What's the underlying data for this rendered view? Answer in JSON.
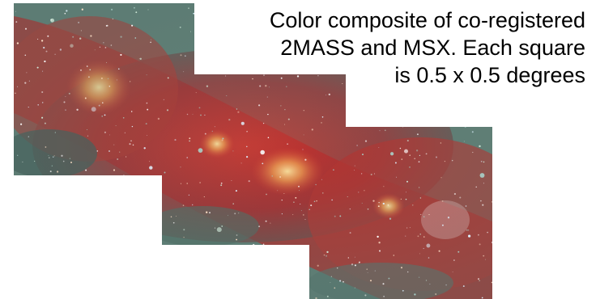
{
  "caption": {
    "line1": "Color composite of co-registered",
    "line2": "2MASS and MSX.  Each square",
    "line3": "is 0.5 x 0.5 degrees"
  },
  "colors": {
    "background": "#ffffff",
    "nebula_red": "#b32a2a",
    "nebula_orange": "#f0b060",
    "star_field_teal": "#5f8a80"
  }
}
